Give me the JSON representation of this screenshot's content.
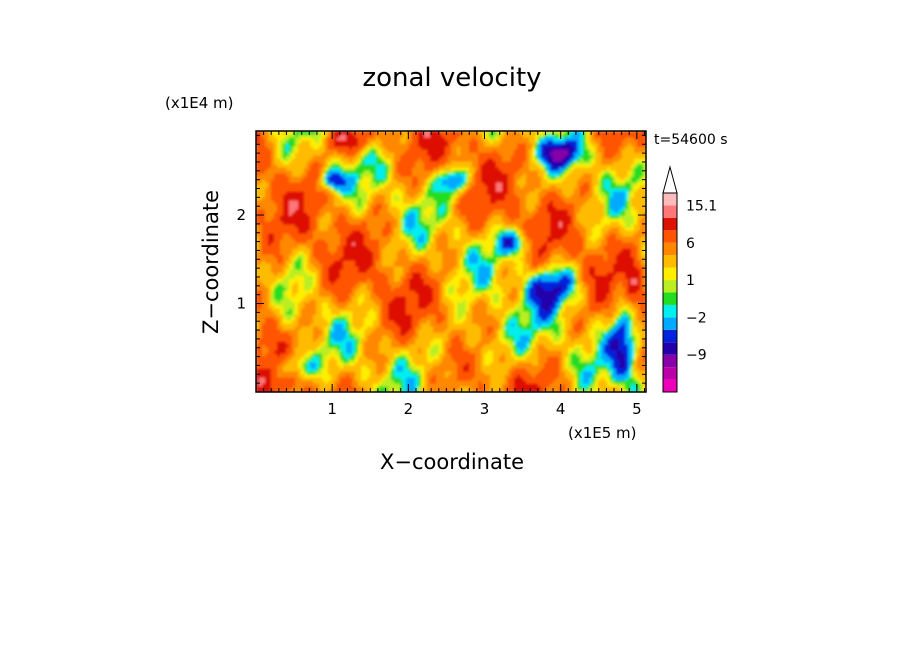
{
  "chart_data": {
    "type": "heatmap",
    "title": "zonal velocity",
    "time_label": "t=54600 s",
    "xlabel": "X−coordinate",
    "ylabel": "Z−coordinate",
    "x_unit": "(x1E5 m)",
    "y_unit": "(x1E4 m)",
    "xlim": [
      0,
      5.12
    ],
    "ylim": [
      0,
      2.95
    ],
    "x_ticks": [
      "1",
      "2",
      "3",
      "4",
      "5"
    ],
    "y_ticks": [
      "1",
      "2"
    ],
    "colorbar": {
      "levels": [
        -15,
        -12,
        -9,
        -6,
        -4,
        -2,
        -1,
        0,
        1,
        2,
        4,
        6,
        9,
        12,
        15.1
      ],
      "colors": [
        "#ee00bb",
        "#bb00aa",
        "#8800aa",
        "#2200aa",
        "#0022dd",
        "#00aaff",
        "#00eeee",
        "#22dd22",
        "#bbee22",
        "#ffee00",
        "#ffbb00",
        "#ff8800",
        "#ff5500",
        "#dd1100",
        "#ff7777",
        "#ffbbbb"
      ],
      "labels": [
        "15.1",
        "6",
        "1",
        "−2",
        "−9"
      ],
      "extend": "max"
    }
  }
}
